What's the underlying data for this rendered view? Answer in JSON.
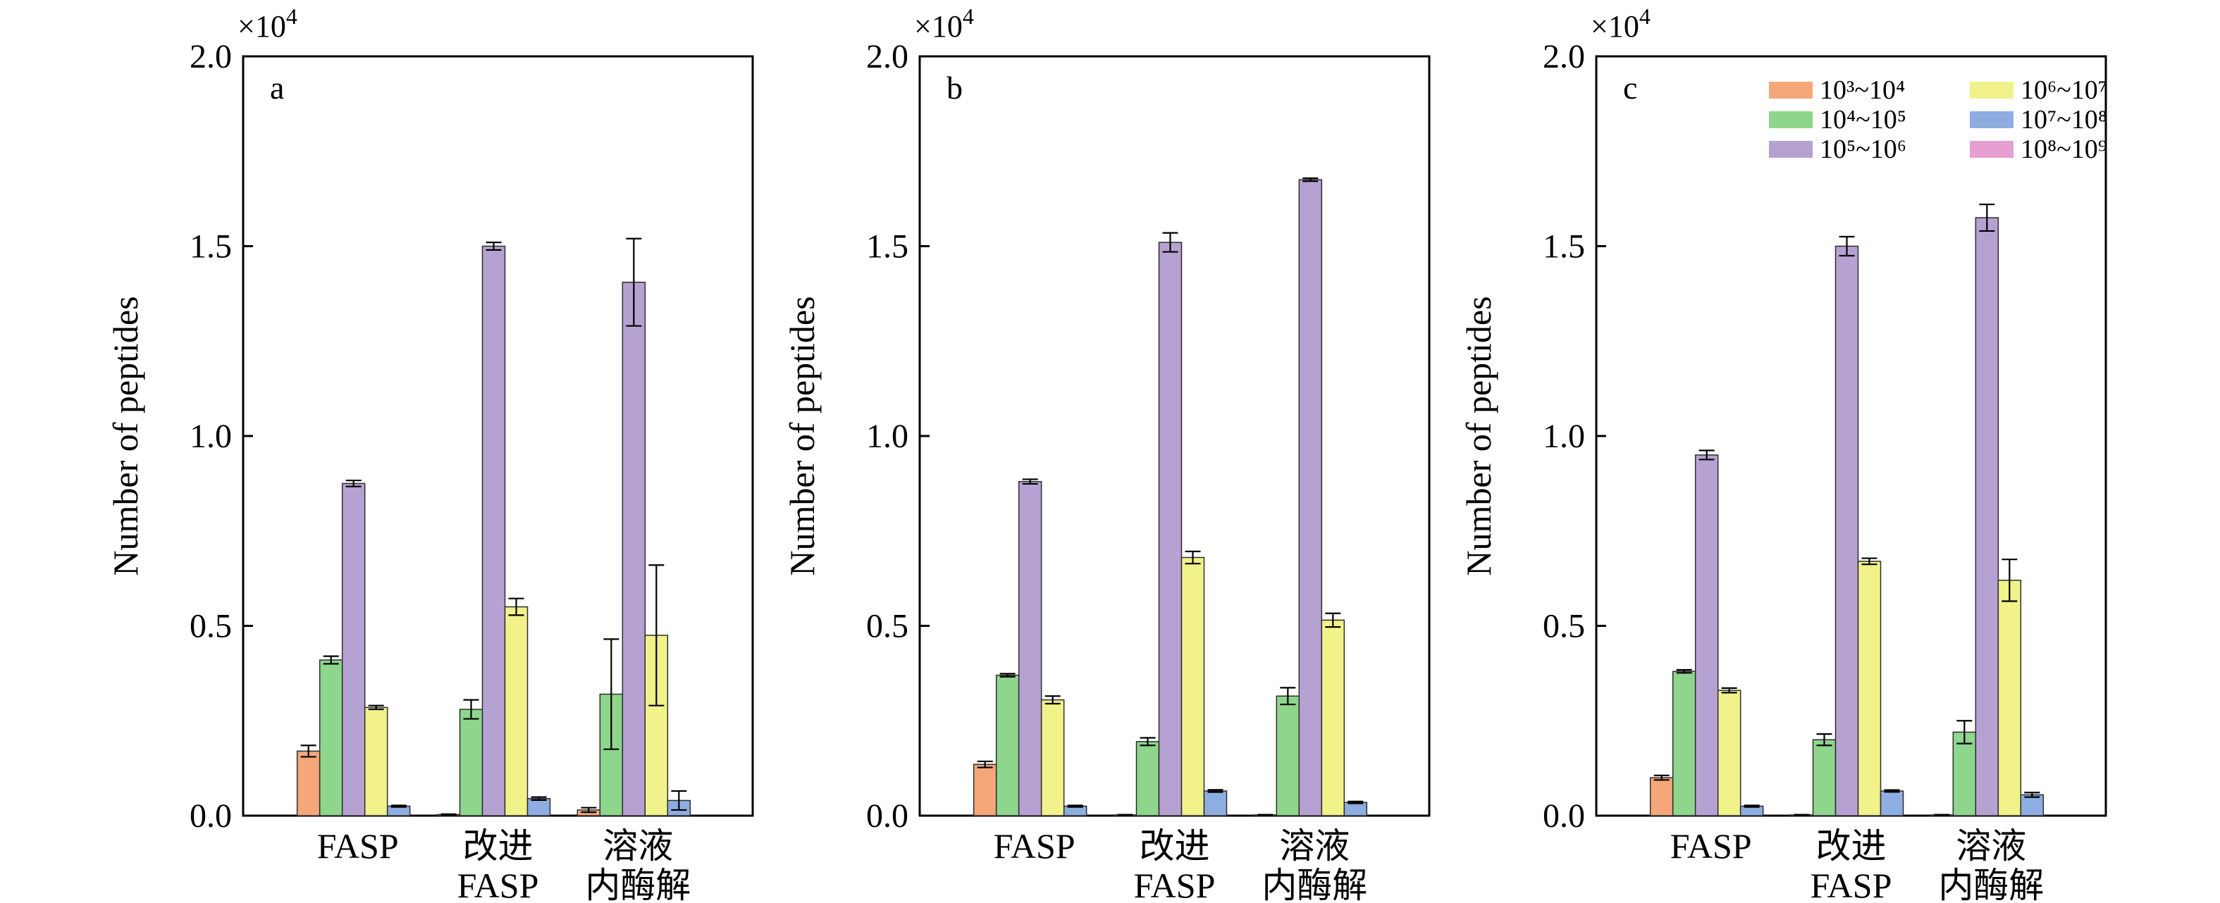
{
  "chart_data": [
    {
      "type": "bar",
      "panel_label": "a",
      "ylabel": "Number of peptides",
      "ylim": [
        0,
        20000
      ],
      "yticks": [
        0,
        5000,
        10000,
        15000,
        20000
      ],
      "ytick_labels": [
        "0.0",
        "0.5",
        "1.0",
        "1.5",
        "2.0"
      ],
      "multiplier": "×10",
      "multiplier_exp": "4",
      "categories": [
        "FASP",
        "改进\nFASP",
        "溶液\n内酶解"
      ],
      "series": [
        {
          "name": "10³~10⁴",
          "color": "#F6A77A",
          "values": [
            1700,
            30,
            150
          ],
          "errors": [
            150,
            10,
            60
          ]
        },
        {
          "name": "10⁴~10⁵",
          "color": "#8ED68C",
          "values": [
            4100,
            2800,
            3200
          ],
          "errors": [
            100,
            250,
            1450
          ]
        },
        {
          "name": "10⁵~10⁶",
          "color": "#B6A2D2",
          "values": [
            8750,
            15000,
            14050
          ],
          "errors": [
            80,
            100,
            1150
          ]
        },
        {
          "name": "10⁶~10⁷",
          "color": "#F1F28A",
          "values": [
            2850,
            5500,
            4750
          ],
          "errors": [
            50,
            220,
            1850
          ]
        },
        {
          "name": "10⁷~10⁸",
          "color": "#8EADE0",
          "values": [
            250,
            450,
            400
          ],
          "errors": [
            20,
            40,
            250
          ]
        },
        {
          "name": "10⁸~10⁹",
          "color": "#E59FD0",
          "values": [
            0,
            0,
            0
          ],
          "errors": [
            0,
            0,
            0
          ]
        }
      ]
    },
    {
      "type": "bar",
      "panel_label": "b",
      "ylabel": "Number of peptides",
      "ylim": [
        0,
        20000
      ],
      "yticks": [
        0,
        5000,
        10000,
        15000,
        20000
      ],
      "ytick_labels": [
        "0.0",
        "0.5",
        "1.0",
        "1.5",
        "2.0"
      ],
      "multiplier": "×10",
      "multiplier_exp": "4",
      "categories": [
        "FASP",
        "改进\nFASP",
        "溶液\n内酶解"
      ],
      "series": [
        {
          "name": "10³~10⁴",
          "color": "#F6A77A",
          "values": [
            1350,
            20,
            20
          ],
          "errors": [
            80,
            5,
            5
          ]
        },
        {
          "name": "10⁴~10⁵",
          "color": "#8ED68C",
          "values": [
            3700,
            1950,
            3150
          ],
          "errors": [
            40,
            100,
            220
          ]
        },
        {
          "name": "10⁵~10⁶",
          "color": "#B6A2D2",
          "values": [
            8800,
            15100,
            16750
          ],
          "errors": [
            60,
            250,
            40
          ]
        },
        {
          "name": "10⁶~10⁷",
          "color": "#F1F28A",
          "values": [
            3050,
            6800,
            5150
          ],
          "errors": [
            100,
            160,
            180
          ]
        },
        {
          "name": "10⁷~10⁸",
          "color": "#8EADE0",
          "values": [
            250,
            650,
            350
          ],
          "errors": [
            20,
            30,
            25
          ]
        },
        {
          "name": "10⁸~10⁹",
          "color": "#E59FD0",
          "values": [
            0,
            0,
            0
          ],
          "errors": [
            0,
            0,
            0
          ]
        }
      ]
    },
    {
      "type": "bar",
      "panel_label": "c",
      "ylabel": "Number of peptides",
      "ylim": [
        0,
        20000
      ],
      "yticks": [
        0,
        5000,
        10000,
        15000,
        20000
      ],
      "ytick_labels": [
        "0.0",
        "0.5",
        "1.0",
        "1.5",
        "2.0"
      ],
      "multiplier": "×10",
      "multiplier_exp": "4",
      "categories": [
        "FASP",
        "改进\nFASP",
        "溶液\n内酶解"
      ],
      "series": [
        {
          "name": "10³~10⁴",
          "color": "#F6A77A",
          "values": [
            1000,
            20,
            20
          ],
          "errors": [
            60,
            5,
            5
          ]
        },
        {
          "name": "10⁴~10⁵",
          "color": "#8ED68C",
          "values": [
            3800,
            2000,
            2200
          ],
          "errors": [
            40,
            150,
            300
          ]
        },
        {
          "name": "10⁵~10⁶",
          "color": "#B6A2D2",
          "values": [
            9500,
            15000,
            15750
          ],
          "errors": [
            120,
            250,
            350
          ]
        },
        {
          "name": "10⁶~10⁷",
          "color": "#F1F28A",
          "values": [
            3300,
            6700,
            6200
          ],
          "errors": [
            60,
            80,
            550
          ]
        },
        {
          "name": "10⁷~10⁸",
          "color": "#8EADE0",
          "values": [
            250,
            650,
            550
          ],
          "errors": [
            20,
            25,
            60
          ]
        },
        {
          "name": "10⁸~10⁹",
          "color": "#E59FD0",
          "values": [
            0,
            0,
            0
          ],
          "errors": [
            0,
            0,
            0
          ]
        }
      ],
      "legend": {
        "placement": "top-right",
        "entries": [
          "10³~10⁴",
          "10⁶~10⁷",
          "10⁴~10⁵",
          "10⁷~10⁸",
          "10⁵~10⁶",
          "10⁸~10⁹"
        ]
      }
    }
  ]
}
